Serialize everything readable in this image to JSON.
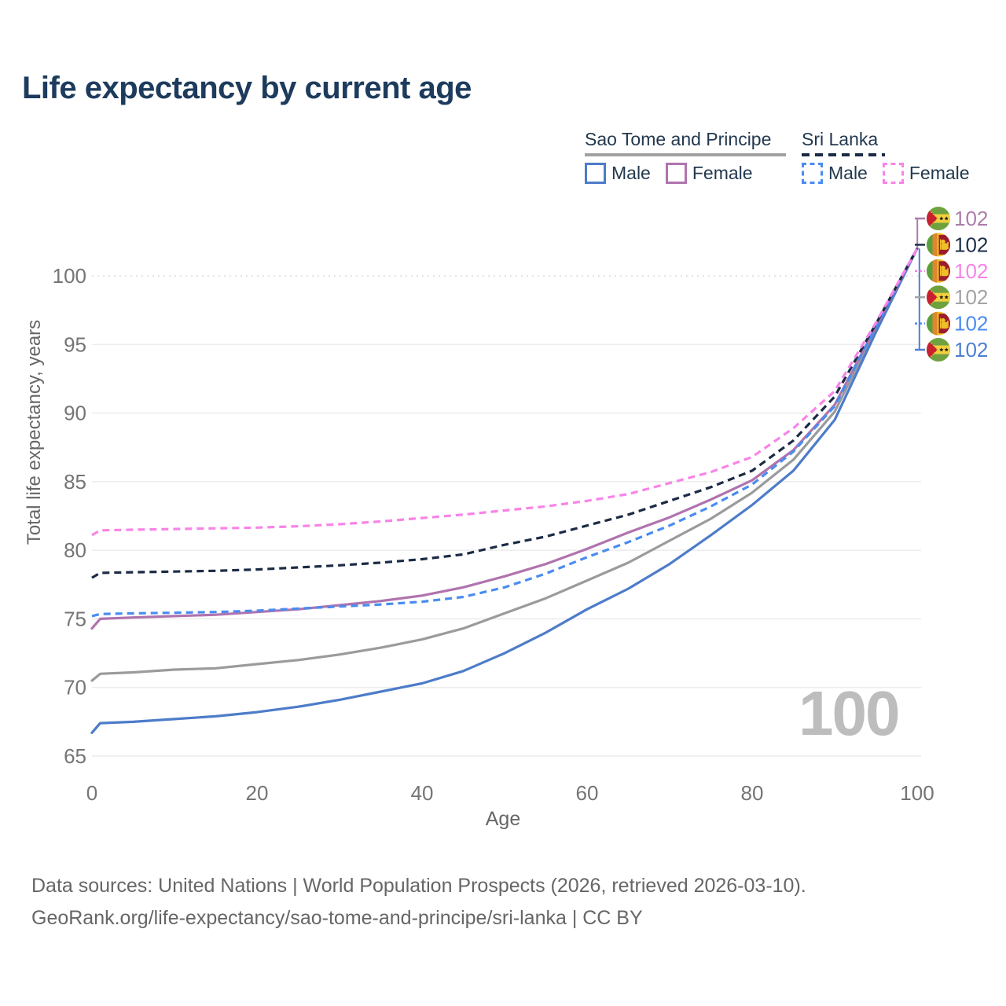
{
  "title": "Life expectancy by current age",
  "legend": {
    "groups": [
      {
        "title": "Sao Tome and Principe",
        "line_style": "solid",
        "line_color": "#a1a1a1",
        "items": [
          {
            "label": "Male",
            "color": "#4d7cc9",
            "style": "solid"
          },
          {
            "label": "Female",
            "color": "#b073ae",
            "style": "solid"
          }
        ]
      },
      {
        "title": "Sri Lanka",
        "line_style": "dashed",
        "line_color": "#1b2b45",
        "items": [
          {
            "label": "Male",
            "color": "#4a8cf0",
            "style": "dashed"
          },
          {
            "label": "Female",
            "color": "#f884e8",
            "style": "dashed"
          }
        ]
      }
    ]
  },
  "axes": {
    "x_label": "Age",
    "y_label": "Total life expectancy, years"
  },
  "watermark": "100",
  "footer": {
    "line1": "Data sources: United Nations | World Population Prospects (2026, retrieved 2026-03-10).",
    "line2": "GeoRank.org/life-expectancy/sao-tome-and-principe/sri-lanka | CC BY"
  },
  "chart_data": {
    "type": "line",
    "title": "Life expectancy by current age",
    "xlabel": "Age",
    "ylabel": "Total life expectancy, years",
    "xlim": [
      0,
      100
    ],
    "ylim": [
      65,
      103
    ],
    "xticks": [
      0,
      20,
      40,
      60,
      80,
      100
    ],
    "yticks": [
      65,
      70,
      75,
      80,
      85,
      90,
      95,
      100
    ],
    "grid": "horizontal",
    "legend_position": "top-right",
    "x": [
      0,
      1,
      5,
      10,
      15,
      20,
      25,
      30,
      35,
      40,
      45,
      50,
      55,
      60,
      65,
      70,
      75,
      80,
      85,
      90,
      95,
      100
    ],
    "series": [
      {
        "name": "Sao Tome and Principe Total",
        "country": "Sao Tome and Principe",
        "sex": "Total",
        "color": "#9b9b9b",
        "dash": false,
        "values": [
          70.5,
          71.0,
          71.1,
          71.3,
          71.4,
          71.7,
          72.0,
          72.4,
          72.9,
          73.5,
          74.3,
          75.4,
          76.5,
          77.8,
          79.1,
          80.7,
          82.3,
          84.2,
          86.6,
          90.1,
          96.1,
          102
        ]
      },
      {
        "name": "Sao Tome and Principe Male",
        "country": "Sao Tome and Principe",
        "sex": "Male",
        "color": "#4d7cc9",
        "dash": false,
        "values": [
          66.7,
          67.4,
          67.5,
          67.7,
          67.9,
          68.2,
          68.6,
          69.1,
          69.7,
          70.3,
          71.2,
          72.5,
          74.0,
          75.7,
          77.2,
          79.0,
          81.1,
          83.3,
          85.8,
          89.5,
          95.9,
          102
        ]
      },
      {
        "name": "Sao Tome and Principe Female",
        "country": "Sao Tome and Principe",
        "sex": "Female",
        "color": "#b073ae",
        "dash": false,
        "values": [
          74.3,
          75.0,
          75.1,
          75.2,
          75.3,
          75.5,
          75.7,
          76.0,
          76.3,
          76.7,
          77.3,
          78.1,
          79.0,
          80.1,
          81.3,
          82.4,
          83.7,
          85.1,
          87.3,
          90.6,
          96.3,
          102
        ]
      },
      {
        "name": "Sri Lanka Male",
        "country": "Sri Lanka",
        "sex": "Male",
        "color": "#4a8cf0",
        "dash": true,
        "values": [
          75.2,
          75.35,
          75.4,
          75.45,
          75.5,
          75.6,
          75.75,
          75.9,
          76.05,
          76.25,
          76.6,
          77.3,
          78.3,
          79.5,
          80.6,
          81.8,
          83.2,
          84.8,
          87.2,
          90.5,
          96.3,
          102
        ]
      },
      {
        "name": "Sri Lanka Total",
        "country": "Sri Lanka",
        "sex": "Total",
        "color": "#1b2b45",
        "dash": true,
        "values": [
          78.0,
          78.35,
          78.4,
          78.45,
          78.5,
          78.6,
          78.75,
          78.9,
          79.1,
          79.35,
          79.7,
          80.4,
          81.0,
          81.8,
          82.6,
          83.6,
          84.6,
          85.8,
          88.0,
          91.2,
          96.5,
          102
        ]
      },
      {
        "name": "Sri Lanka Female",
        "country": "Sri Lanka",
        "sex": "Female",
        "color": "#f884e8",
        "dash": true,
        "values": [
          81.1,
          81.45,
          81.5,
          81.55,
          81.6,
          81.65,
          81.75,
          81.9,
          82.1,
          82.35,
          82.6,
          82.9,
          83.2,
          83.6,
          84.1,
          84.9,
          85.7,
          86.8,
          88.9,
          91.6,
          96.6,
          102
        ]
      }
    ],
    "end_labels": [
      {
        "value": "102",
        "flag": "sao-tome-and-principe",
        "series": "Sao Tome and Principe Female",
        "color": "#ab7cab"
      },
      {
        "value": "102",
        "flag": "sri-lanka",
        "series": "Sri Lanka Total",
        "color": "#1d2e49"
      },
      {
        "value": "102",
        "flag": "sri-lanka",
        "series": "Sri Lanka Female",
        "color": "#f783ea"
      },
      {
        "value": "102",
        "flag": "sao-tome-and-principe",
        "series": "Sao Tome and Principe Total",
        "color": "#a3a3a3"
      },
      {
        "value": "102",
        "flag": "sri-lanka",
        "series": "Sri Lanka Male",
        "color": "#4a8bf0"
      },
      {
        "value": "102",
        "flag": "sao-tome-and-principe",
        "series": "Sao Tome and Principe Male",
        "color": "#4d7fd1"
      }
    ]
  }
}
